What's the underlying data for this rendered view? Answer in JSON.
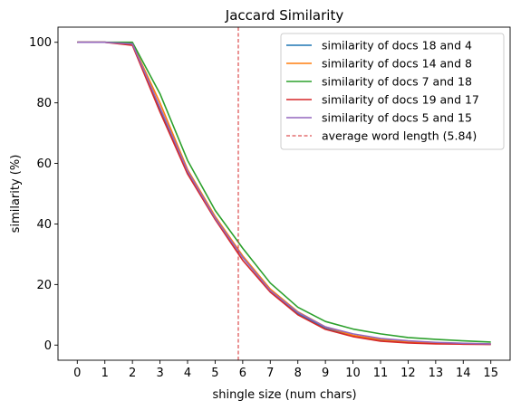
{
  "chart_data": {
    "type": "line",
    "title": "Jaccard Similarity",
    "xlabel": "shingle size (num chars)",
    "ylabel": "similarity (%)",
    "xlim": [
      -0.7,
      15.7
    ],
    "ylim": [
      -5,
      105
    ],
    "xticks": [
      0,
      1,
      2,
      3,
      4,
      5,
      6,
      7,
      8,
      9,
      10,
      11,
      12,
      13,
      14,
      15
    ],
    "yticks": [
      0,
      20,
      40,
      60,
      80,
      100
    ],
    "grid": false,
    "legend_position": "top-right",
    "x": [
      0,
      1,
      2,
      3,
      4,
      5,
      6,
      7,
      8,
      9,
      10,
      11,
      12,
      13,
      14,
      15
    ],
    "series": [
      {
        "name": "similarity of docs 18 and 4",
        "color": "#1f77b4",
        "values": [
          100,
          100,
          99.5,
          78,
          57,
          42,
          29,
          18,
          10.5,
          5.5,
          3,
          1.6,
          1.0,
          0.6,
          0.4,
          0.3
        ]
      },
      {
        "name": "similarity of docs 14 and 8",
        "color": "#ff7f0e",
        "values": [
          100,
          100,
          99.5,
          80,
          58,
          42.5,
          29.5,
          18.5,
          11,
          6,
          3.2,
          1.8,
          1.1,
          0.7,
          0.5,
          0.4
        ]
      },
      {
        "name": "similarity of docs 7 and 18",
        "color": "#2ca02c",
        "values": [
          100,
          100,
          100,
          83,
          61,
          44.5,
          32,
          20.5,
          12.5,
          7.8,
          5.3,
          3.7,
          2.5,
          1.9,
          1.4,
          1.0
        ]
      },
      {
        "name": "similarity of docs 19 and 17",
        "color": "#d62728",
        "values": [
          100,
          100,
          99,
          77,
          56.5,
          41.5,
          28,
          17.5,
          10,
          5.2,
          2.8,
          1.3,
          0.7,
          0.4,
          0.3,
          0.2
        ]
      },
      {
        "name": "similarity of docs 5 and 15",
        "color": "#9467bd",
        "values": [
          100,
          100,
          99.5,
          78.5,
          57.5,
          42,
          29,
          18,
          10.8,
          6,
          3.7,
          2.2,
          1.4,
          0.9,
          0.6,
          0.4
        ]
      }
    ],
    "vline": {
      "x": 5.84,
      "label": "average word length (5.84)",
      "color": "#d62728",
      "style": "dashed"
    }
  }
}
